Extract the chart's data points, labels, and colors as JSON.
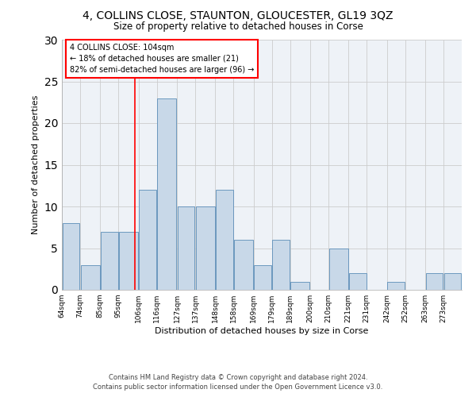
{
  "title": "4, COLLINS CLOSE, STAUNTON, GLOUCESTER, GL19 3QZ",
  "subtitle": "Size of property relative to detached houses in Corse",
  "xlabel": "Distribution of detached houses by size in Corse",
  "ylabel": "Number of detached properties",
  "footer_line1": "Contains HM Land Registry data © Crown copyright and database right 2024.",
  "footer_line2": "Contains public sector information licensed under the Open Government Licence v3.0.",
  "bin_labels": [
    "64sqm",
    "74sqm",
    "85sqm",
    "95sqm",
    "106sqm",
    "116sqm",
    "127sqm",
    "137sqm",
    "148sqm",
    "158sqm",
    "169sqm",
    "179sqm",
    "189sqm",
    "200sqm",
    "210sqm",
    "221sqm",
    "231sqm",
    "242sqm",
    "252sqm",
    "263sqm",
    "273sqm"
  ],
  "bin_edges": [
    64,
    74,
    85,
    95,
    106,
    116,
    127,
    137,
    148,
    158,
    169,
    179,
    189,
    200,
    210,
    221,
    231,
    242,
    252,
    263,
    273,
    283
  ],
  "bar_heights": [
    8,
    3,
    7,
    7,
    12,
    23,
    10,
    10,
    12,
    6,
    3,
    6,
    1,
    0,
    5,
    2,
    0,
    1,
    0,
    2,
    2
  ],
  "bar_color": "#c8d8e8",
  "bar_edgecolor": "#5b8db8",
  "reference_line_x": 104,
  "reference_label": "4 COLLINS CLOSE: 104sqm",
  "annotation_line2": "← 18% of detached houses are smaller (21)",
  "annotation_line3": "82% of semi-detached houses are larger (96) →",
  "ylim": [
    0,
    30
  ],
  "yticks": [
    0,
    5,
    10,
    15,
    20,
    25,
    30
  ],
  "grid_color": "#cccccc",
  "bg_color": "#eef2f7"
}
